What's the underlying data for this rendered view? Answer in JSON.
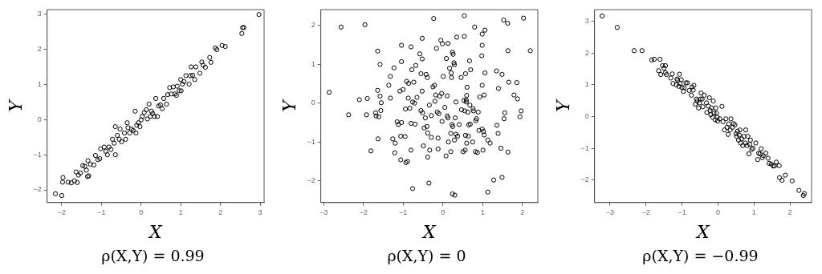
{
  "chart_data": [
    {
      "type": "scatter",
      "xlabel": "X",
      "ylabel": "Y",
      "annotations": [
        "ρ(X,Y) = 0.99"
      ],
      "grid": false,
      "marker": "circle",
      "xlim": [
        -2.37,
        3.1
      ],
      "ylim": [
        -2.36,
        3.13
      ],
      "xticks": [
        -2,
        -1,
        0,
        1,
        2,
        3
      ],
      "yticks": [
        -2,
        -1,
        0,
        1,
        2,
        3
      ],
      "series": [
        {
          "color": "#000000",
          "x": [
            -2.16,
            -2.0,
            -1.97,
            -1.98,
            -1.84,
            -1.76,
            -1.68,
            -1.61,
            -1.64,
            -1.58,
            -1.53,
            -1.47,
            -1.42,
            -1.38,
            -1.35,
            -1.32,
            -1.34,
            -1.28,
            -1.19,
            -1.15,
            -1.09,
            -1.04,
            -1.02,
            -0.93,
            -0.89,
            -0.85,
            -0.81,
            -0.76,
            -0.72,
            -0.68,
            -0.65,
            -0.65,
            -0.6,
            -0.55,
            -0.53,
            -0.49,
            -0.42,
            -0.39,
            -0.35,
            -0.33,
            -0.29,
            -0.24,
            -0.2,
            -0.15,
            -0.13,
            -0.11,
            -0.07,
            -0.03,
            0,
            0.03,
            0.08,
            0.13,
            0.16,
            0.2,
            0.23,
            0.26,
            0.29,
            0.33,
            0.37,
            0.41,
            0.44,
            0.49,
            0.53,
            0.57,
            0.64,
            0.67,
            0.72,
            0.76,
            0.81,
            0.85,
            0.89,
            0.91,
            0.96,
            1.01,
            1.0,
            1.04,
            1.08,
            1.13,
            1.21,
            1.24,
            1.26,
            1.3,
            1.35,
            1.38,
            1.48,
            1.53,
            1.56,
            1.62,
            1.73,
            1.76,
            1.87,
            1.91,
            2.04,
            2.12,
            2.54,
            2.56,
            2.59,
            2.97
          ],
          "values": [
            -2.11,
            -2.16,
            -1.65,
            -1.78,
            -1.78,
            -1.8,
            -1.74,
            -1.79,
            -1.49,
            -1.58,
            -1.52,
            -1.31,
            -1.33,
            -1.44,
            -1.62,
            -1.6,
            -1.17,
            -1.27,
            -1.29,
            -1.02,
            -1.14,
            -1.11,
            -0.83,
            -0.78,
            -0.9,
            -1.0,
            -0.78,
            -0.85,
            -0.56,
            -0.67,
            -1.0,
            -0.2,
            -0.45,
            -0.56,
            -0.27,
            -0.63,
            -0.38,
            -0.56,
            -0.09,
            -0.23,
            -0.38,
            -0.27,
            -0.31,
            0.24,
            -0.38,
            -0.16,
            -0.09,
            -0.2,
            -0.01,
            0.09,
            0.2,
            0.28,
            0.02,
            0.44,
            0.09,
            0.24,
            0.17,
            0.09,
            0.6,
            0.09,
            0.39,
            0.42,
            0.31,
            0.6,
            0.44,
            0.71,
            0.91,
            0.73,
            0.93,
            0.73,
            0.69,
            0.95,
            0.82,
            0.82,
            1.14,
            1.01,
            1.08,
            1.25,
            1.01,
            1.25,
            1.5,
            1.26,
            1.14,
            1.5,
            1.32,
            1.64,
            1.55,
            1.49,
            1.77,
            1.63,
            2.04,
            1.99,
            2.11,
            2.08,
            2.45,
            2.62,
            2.62,
            2.99
          ]
        }
      ]
    },
    {
      "type": "scatter",
      "xlabel": "X",
      "ylabel": "Y",
      "annotations": [
        "ρ(X,Y) = 0"
      ],
      "grid": false,
      "marker": "circle",
      "xlim": [
        -3.07,
        2.39
      ],
      "ylim": [
        -2.56,
        2.41
      ],
      "xticks": [
        -3,
        -2,
        -1,
        0,
        1,
        2
      ],
      "yticks": [
        -2,
        -1,
        0,
        1,
        2
      ],
      "series": [
        {
          "color": "#000000",
          "x": [
            -2.86,
            -2.56,
            -2.37,
            -2.1,
            -1.96,
            -1.92,
            -1.9,
            -1.81,
            -1.69,
            -1.68,
            -1.64,
            -1.64,
            -1.63,
            -1.61,
            -1.58,
            -1.58,
            -1.56,
            -1.55,
            -1.36,
            -1.32,
            -1.32,
            -1.26,
            -1.23,
            -1.21,
            -1.2,
            -1.15,
            -1.12,
            -1.08,
            -1.06,
            -1.06,
            -1.04,
            -1.04,
            -1.04,
            -1.0,
            -0.95,
            -0.94,
            -0.93,
            -0.91,
            -0.89,
            -0.87,
            -0.86,
            -0.83,
            -0.8,
            -0.8,
            -0.8,
            -0.78,
            -0.76,
            -0.76,
            -0.73,
            -0.71,
            -0.7,
            -0.68,
            -0.65,
            -0.58,
            -0.55,
            -0.55,
            -0.52,
            -0.52,
            -0.52,
            -0.51,
            -0.49,
            -0.47,
            -0.44,
            -0.42,
            -0.4,
            -0.39,
            -0.38,
            -0.38,
            -0.35,
            -0.34,
            -0.33,
            -0.29,
            -0.29,
            -0.25,
            -0.23,
            -0.21,
            -0.2,
            -0.18,
            -0.16,
            -0.14,
            -0.12,
            -0.12,
            -0.1,
            -0.08,
            -0.05,
            -0.03,
            -0.02,
            -0.01,
            0.01,
            0.05,
            0.08,
            0.09,
            0.11,
            0.11,
            0.13,
            0.13,
            0.14,
            0.17,
            0.2,
            0.2,
            0.21,
            0.22,
            0.23,
            0.24,
            0.24,
            0.25,
            0.26,
            0.28,
            0.29,
            0.29,
            0.3,
            0.31,
            0.33,
            0.33,
            0.35,
            0.37,
            0.41,
            0.46,
            0.47,
            0.51,
            0.53,
            0.54,
            0.54,
            0.55,
            0.56,
            0.57,
            0.57,
            0.59,
            0.59,
            0.6,
            0.6,
            0.61,
            0.63,
            0.64,
            0.65,
            0.67,
            0.68,
            0.69,
            0.7,
            0.75,
            0.76,
            0.77,
            0.8,
            0.82,
            0.83,
            0.85,
            0.87,
            0.89,
            0.91,
            0.93,
            0.98,
            0.99,
            0.99,
            0.99,
            0.99,
            1.01,
            1.02,
            1.04,
            1.04,
            1.06,
            1.06,
            1.13,
            1.13,
            1.19,
            1.28,
            1.35,
            1.36,
            1.39,
            1.4,
            1.46,
            1.49,
            1.49,
            1.53,
            1.54,
            1.56,
            1.63,
            1.64,
            1.64,
            1.66,
            1.79,
            1.86,
            1.88,
            1.94,
            1.97,
            2.03,
            2.2
          ],
          "values": [
            0.28,
            1.96,
            -0.3,
            0.09,
            2.02,
            -0.3,
            0.12,
            -1.23,
            -0.25,
            -0.33,
            1.34,
            0.33,
            -0.92,
            -0.35,
            1.0,
            0.18,
            -0.19,
            0.01,
            0.46,
            0.69,
            0.13,
            -0.92,
            0.91,
            -1.28,
            -1.03,
            -0.48,
            -0.55,
            0.31,
            -0.85,
            -1.46,
            -0.5,
            1.07,
            1.49,
            0.35,
            -0.86,
            -0.15,
            -1.53,
            0.56,
            -1.5,
            0.13,
            0.51,
            -0.13,
            1.45,
            -0.52,
            -1.21,
            0.86,
            0.03,
            -2.2,
            0.54,
            0.0,
            -0.54,
            0.97,
            0.15,
            1.27,
            -0.19,
            0.76,
            1.67,
            1.14,
            0.31,
            -0.25,
            -1.1,
            -0.64,
            -0.38,
            0.74,
            -0.6,
            0.66,
            -0.77,
            -1.39,
            -2.06,
            -0.05,
            -1.21,
            -0.88,
            -0.32,
            0.42,
            2.18,
            0.46,
            0.05,
            0.21,
            1.41,
            -0.23,
            -1.18,
            -0.9,
            -0.27,
            0.18,
            1.62,
            0.25,
            -0.47,
            1.53,
            0.69,
            -0.11,
            -1.36,
            1.15,
            0.19,
            -0.33,
            1.54,
            -0.38,
            -1.0,
            0.9,
            -1.25,
            -0.78,
            0.78,
            0.66,
            -0.55,
            1.31,
            -2.34,
            -0.6,
            1.26,
            1.04,
            -0.95,
            0.99,
            -2.37,
            -0.38,
            -0.8,
            0.03,
            1.7,
            -0.85,
            -0.55,
            0.66,
            -0.17,
            -1.25,
            0.07,
            2.25,
            1.72,
            -0.2,
            -1.21,
            -0.83,
            0.76,
            0.08,
            0.03,
            0.2,
            -1.03,
            0.41,
            -0.23,
            -0.85,
            -0.56,
            1.09,
            -0.05,
            -0.54,
            0.86,
            -1.0,
            -0.14,
            -0.2,
            1.96,
            -1.25,
            -0.45,
            -0.4,
            -1.27,
            -0.23,
            -0.7,
            0.16,
            1.22,
            1.49,
            1.78,
            0.46,
            -0.67,
            -1.21,
            -0.73,
            0.21,
            -0.82,
            0.78,
            1.88,
            -2.29,
            -0.95,
            -1.03,
            -1.98,
            0.83,
            -0.57,
            -0.78,
            0.38,
            -1.16,
            0.74,
            -1.91,
            2.14,
            -0.4,
            -0.25,
            2.06,
            1.35,
            -1.26,
            0.54,
            0.21,
            0.53,
            0.11,
            -0.35,
            -0.2,
            2.19,
            1.35
          ]
        }
      ]
    },
    {
      "type": "scatter",
      "xlabel": "X",
      "ylabel": "Y",
      "annotations": [
        "ρ(X,Y) = −0.99"
      ],
      "grid": false,
      "marker": "circle",
      "xlim": [
        -3.43,
        2.6
      ],
      "ylim": [
        -2.7,
        3.36
      ],
      "xticks": [
        -3,
        -2,
        -1,
        0,
        1,
        2
      ],
      "yticks": [
        -2,
        -1,
        0,
        1,
        2,
        3
      ],
      "series": [
        {
          "color": "#000000",
          "x": [
            -3.22,
            -2.8,
            -2.33,
            -2.11,
            -1.84,
            -1.77,
            -1.61,
            -1.65,
            -1.59,
            -1.54,
            -1.5,
            -1.46,
            -1.46,
            -1.43,
            -1.31,
            -1.27,
            -1.25,
            -1.16,
            -1.14,
            -1.12,
            -1.09,
            -1.07,
            -1.05,
            -1.02,
            -1.0,
            -0.96,
            -0.94,
            -0.89,
            -0.85,
            -0.8,
            -0.74,
            -0.72,
            -0.69,
            -0.67,
            -0.63,
            -0.6,
            -0.58,
            -0.54,
            -0.51,
            -0.49,
            -0.47,
            -0.44,
            -0.42,
            -0.38,
            -0.32,
            -0.31,
            -0.27,
            -0.24,
            -0.22,
            -0.2,
            -0.18,
            -0.15,
            -0.13,
            -0.11,
            -0.08,
            -0.06,
            -0.04,
            -0.02,
            -0.01,
            0.05,
            0.11,
            0.14,
            0.18,
            0.22,
            0.25,
            0.28,
            0.3,
            0.34,
            0.36,
            0.4,
            0.43,
            0.47,
            0.5,
            0.52,
            0.54,
            0.57,
            0.59,
            0.61,
            0.63,
            0.66,
            0.69,
            0.72,
            0.76,
            0.77,
            0.81,
            0.83,
            0.86,
            0.88,
            0.9,
            0.94,
            0.97,
            1.05,
            1.1,
            1.13,
            1.17,
            1.2,
            1.23,
            1.26,
            1.33,
            1.39,
            1.42,
            1.48,
            1.53,
            1.57,
            1.62,
            1.7,
            1.71,
            1.78,
            1.87,
            2.06,
            2.25,
            2.37,
            2.4
          ],
          "values": [
            3.16,
            2.8,
            2.07,
            2.07,
            1.78,
            1.8,
            1.8,
            1.44,
            1.32,
            1.6,
            1.52,
            1.6,
            1.38,
            1.32,
            1.21,
            1.34,
            1.04,
            1.0,
            1.18,
            1.14,
            0.95,
            1.33,
            1.04,
            1.16,
            0.91,
            0.79,
            0.91,
            1.06,
            1.06,
            0.82,
            0.67,
            0.93,
            0.83,
            0.98,
            0.39,
            0.55,
            0.49,
            0.27,
            0.43,
            0.55,
            0.74,
            0.55,
            0.31,
            0.67,
            0.43,
            0.13,
            0.33,
            0.59,
            0.19,
            0.06,
            0.27,
            -0.02,
            0.49,
            0.11,
            -0.1,
            0.27,
            0.11,
            -0.02,
            -0.14,
            -0.07,
            0.32,
            -0.16,
            -0.42,
            -0.07,
            -0.34,
            -0.56,
            -0.23,
            -0.42,
            -0.07,
            -0.34,
            -0.22,
            -0.26,
            -0.54,
            -0.62,
            -0.46,
            -0.74,
            -0.58,
            -0.42,
            -0.83,
            -0.7,
            -0.91,
            -0.62,
            -0.83,
            -0.42,
            -0.91,
            -0.62,
            -1.17,
            -0.87,
            -0.74,
            -1.03,
            -0.99,
            -0.83,
            -1.35,
            -1.15,
            -1.17,
            -1.01,
            -1.29,
            -1.23,
            -1.15,
            -1.31,
            -1.47,
            -1.49,
            -1.55,
            -1.55,
            -1.43,
            -1.54,
            -1.92,
            -2.0,
            -1.84,
            -2.02,
            -2.32,
            -2.48,
            -2.42
          ]
        }
      ]
    }
  ]
}
